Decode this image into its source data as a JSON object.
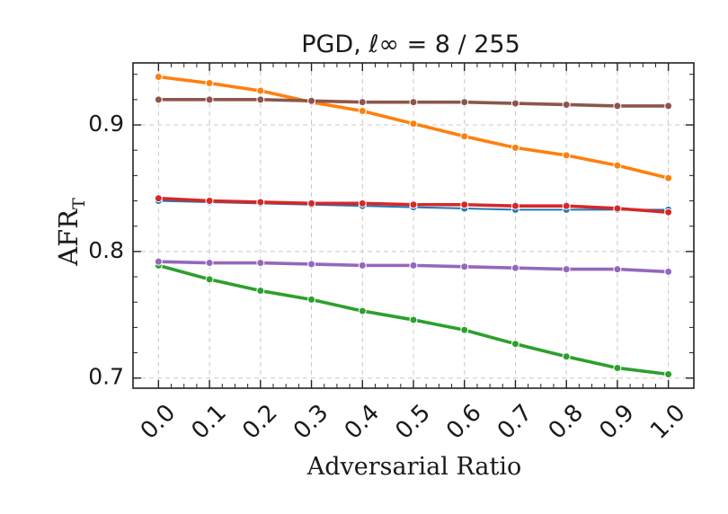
{
  "chart_data": {
    "type": "line",
    "title": "PGD, ℓ∞ = 8 / 255",
    "xlabel": "Adversarial Ratio",
    "ylabel_main": "AFR",
    "ylabel_sub": "T",
    "x": [
      0.0,
      0.1,
      0.2,
      0.3,
      0.4,
      0.5,
      0.6,
      0.7,
      0.8,
      0.9,
      1.0
    ],
    "x_tick_labels": [
      "0.0",
      "0.1",
      "0.2",
      "0.3",
      "0.4",
      "0.5",
      "0.6",
      "0.7",
      "0.8",
      "0.9",
      "1.0"
    ],
    "y_ticks": [
      0.7,
      0.8,
      0.9
    ],
    "y_tick_labels": [
      "0.7",
      "0.8",
      "0.9"
    ],
    "xlim": [
      -0.05,
      1.05
    ],
    "ylim": [
      0.692,
      0.949
    ],
    "grid": true,
    "legend": "none",
    "series": [
      {
        "color": "#1f77b4",
        "values": [
          0.84,
          0.839,
          0.838,
          0.837,
          0.836,
          0.835,
          0.834,
          0.833,
          0.833,
          0.833,
          0.833
        ]
      },
      {
        "color": "#ff7f0e",
        "values": [
          0.938,
          0.933,
          0.927,
          0.918,
          0.911,
          0.901,
          0.891,
          0.882,
          0.876,
          0.868,
          0.858
        ]
      },
      {
        "color": "#2ca02c",
        "values": [
          0.789,
          0.778,
          0.769,
          0.762,
          0.753,
          0.746,
          0.738,
          0.727,
          0.717,
          0.708,
          0.703
        ]
      },
      {
        "color": "#d62728",
        "values": [
          0.842,
          0.84,
          0.839,
          0.838,
          0.838,
          0.837,
          0.837,
          0.836,
          0.836,
          0.834,
          0.831
        ]
      },
      {
        "color": "#9467bd",
        "values": [
          0.792,
          0.791,
          0.791,
          0.79,
          0.789,
          0.789,
          0.788,
          0.787,
          0.786,
          0.786,
          0.784
        ]
      },
      {
        "color": "#8c564b",
        "values": [
          0.92,
          0.92,
          0.92,
          0.919,
          0.918,
          0.918,
          0.918,
          0.917,
          0.916,
          0.915,
          0.915
        ]
      }
    ]
  }
}
